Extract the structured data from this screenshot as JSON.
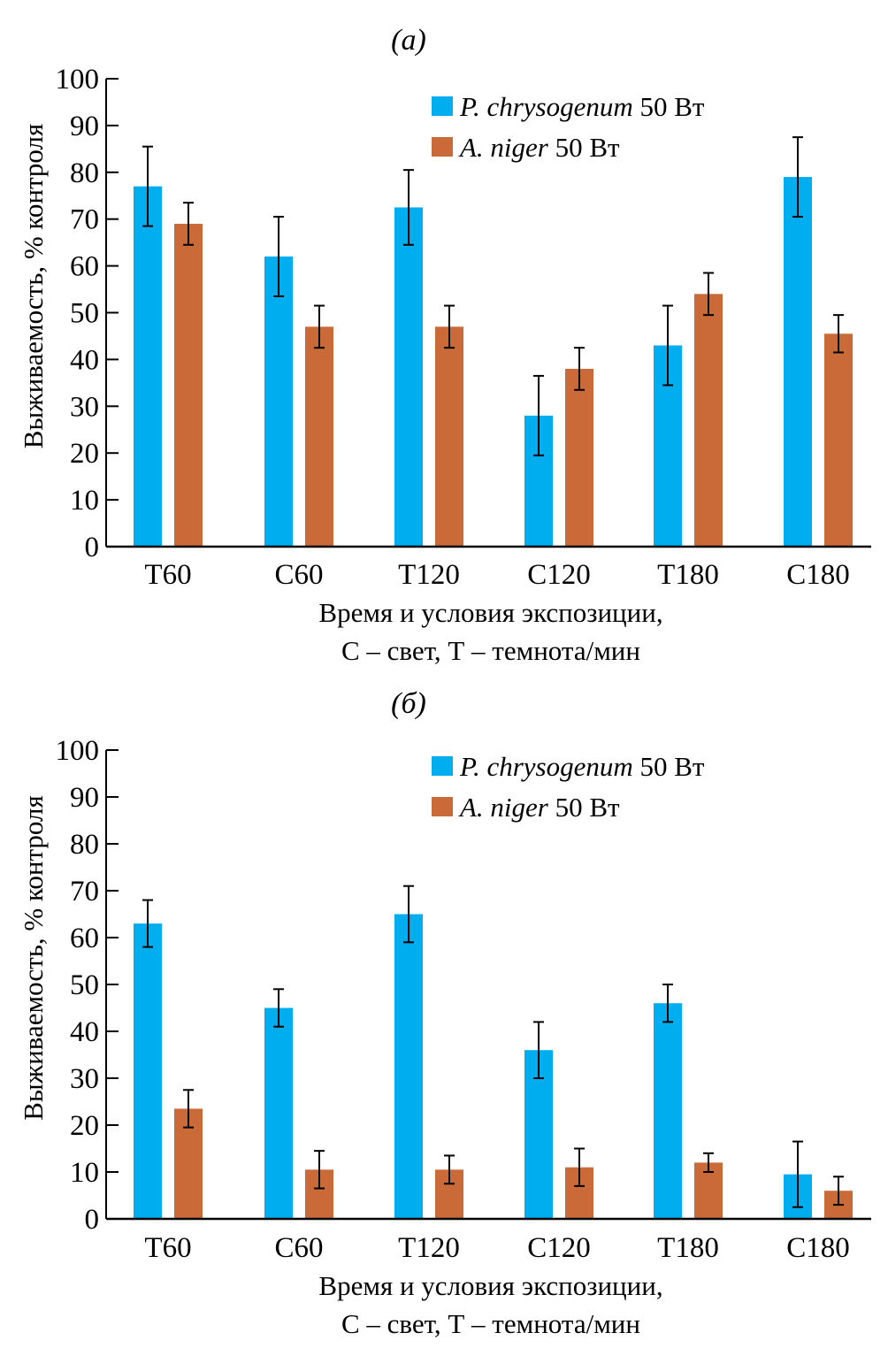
{
  "chart_data": [
    {
      "type": "bar",
      "panel_label": "(а)",
      "categories": [
        "T60",
        "C60",
        "T120",
        "C120",
        "T180",
        "C180"
      ],
      "series": [
        {
          "name": "P. chrysogenum 50 Вт",
          "species": "P. chrysogenum",
          "power": "50  Вт",
          "color": "#00AEEF",
          "values": [
            77,
            62,
            72.5,
            28,
            43,
            79
          ],
          "errors": [
            8.5,
            8.5,
            8,
            8.5,
            8.5,
            8.5
          ]
        },
        {
          "name": "A. niger 50 Вт",
          "species": "A. niger",
          "power": "50   Вт",
          "color": "#C96A38",
          "values": [
            69,
            47,
            47,
            38,
            54,
            45.5
          ],
          "errors": [
            4.5,
            4.5,
            4.5,
            4.5,
            4.5,
            4
          ]
        }
      ],
      "ylabel": "Выживаемость, % контроля",
      "xlabel_line1": "Время и условия экспозиции,",
      "xlabel_line2": "С – свет, Т – темнота/мин",
      "ylim": [
        0,
        100
      ],
      "yticks": [
        0,
        10,
        20,
        30,
        40,
        50,
        60,
        70,
        80,
        90,
        100
      ],
      "grid": false,
      "legend": "top-right"
    },
    {
      "type": "bar",
      "panel_label": "(б)",
      "categories": [
        "T60",
        "C60",
        "T120",
        "C120",
        "T180",
        "C180"
      ],
      "series": [
        {
          "name": "P. chrysogenum 50 Вт",
          "species": "P. chrysogenum",
          "power": "50  Вт",
          "color": "#00AEEF",
          "values": [
            63,
            45,
            65,
            36,
            46,
            9.5
          ],
          "errors": [
            5,
            4,
            6,
            6,
            4,
            7
          ]
        },
        {
          "name": "A. niger 50 Вт",
          "species": "A. niger",
          "power": "50   Вт",
          "color": "#C96A38",
          "values": [
            23.5,
            10.5,
            10.5,
            11,
            12,
            6
          ],
          "errors": [
            4,
            4,
            3,
            4,
            2,
            3
          ]
        }
      ],
      "ylabel": "Выживаемость, % контроля",
      "xlabel_line1": "Время и условия экспозиции,",
      "xlabel_line2": "С – свет, Т – темнота/мин",
      "ylim": [
        0,
        100
      ],
      "yticks": [
        0,
        10,
        20,
        30,
        40,
        50,
        60,
        70,
        80,
        90,
        100
      ],
      "grid": false,
      "legend": "top-right"
    }
  ]
}
